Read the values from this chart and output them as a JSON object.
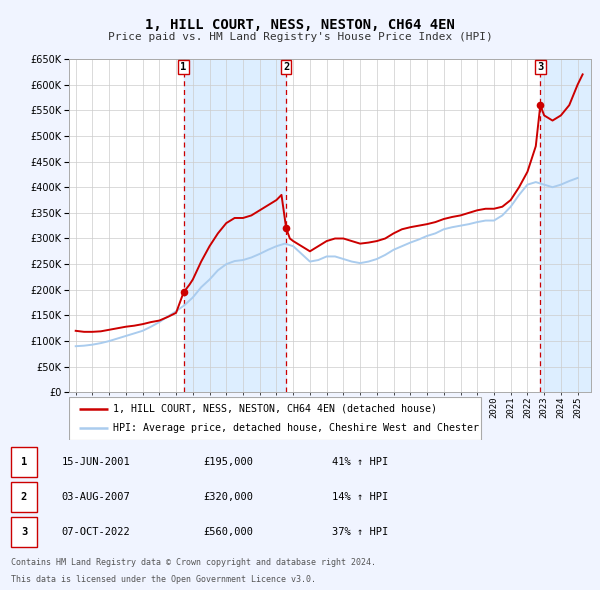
{
  "title": "1, HILL COURT, NESS, NESTON, CH64 4EN",
  "subtitle": "Price paid vs. HM Land Registry's House Price Index (HPI)",
  "legend_label_red": "1, HILL COURT, NESS, NESTON, CH64 4EN (detached house)",
  "legend_label_blue": "HPI: Average price, detached house, Cheshire West and Chester",
  "footnote1": "Contains HM Land Registry data © Crown copyright and database right 2024.",
  "footnote2": "This data is licensed under the Open Government Licence v3.0.",
  "transactions": [
    {
      "num": 1,
      "date": "15-JUN-2001",
      "price": 195000,
      "hpi_pct": "41% ↑ HPI",
      "x": 2001.45
    },
    {
      "num": 2,
      "date": "03-AUG-2007",
      "price": 320000,
      "hpi_pct": "14% ↑ HPI",
      "x": 2007.58
    },
    {
      "num": 3,
      "date": "07-OCT-2022",
      "price": 560000,
      "hpi_pct": "37% ↑ HPI",
      "x": 2022.77
    }
  ],
  "ylim": [
    0,
    650000
  ],
  "yticks": [
    0,
    50000,
    100000,
    150000,
    200000,
    250000,
    300000,
    350000,
    400000,
    450000,
    500000,
    550000,
    600000,
    650000
  ],
  "xlim_start": 1994.6,
  "xlim_end": 2025.8,
  "bg_color": "#f0f4ff",
  "plot_bg_color": "#ffffff",
  "grid_color": "#cccccc",
  "red_color": "#cc0000",
  "blue_color": "#aaccee",
  "vline_color": "#cc0000",
  "highlight_bg": "#ddeeff",
  "marker_color": "#cc0000",
  "red_line": [
    [
      1995.0,
      120000
    ],
    [
      1995.5,
      118000
    ],
    [
      1996.0,
      118000
    ],
    [
      1996.5,
      119000
    ],
    [
      1997.0,
      122000
    ],
    [
      1997.5,
      125000
    ],
    [
      1998.0,
      128000
    ],
    [
      1998.5,
      130000
    ],
    [
      1999.0,
      133000
    ],
    [
      1999.5,
      137000
    ],
    [
      2000.0,
      140000
    ],
    [
      2000.5,
      147000
    ],
    [
      2001.0,
      155000
    ],
    [
      2001.45,
      195000
    ],
    [
      2001.8,
      210000
    ],
    [
      2002.0,
      220000
    ],
    [
      2002.5,
      255000
    ],
    [
      2003.0,
      285000
    ],
    [
      2003.5,
      310000
    ],
    [
      2004.0,
      330000
    ],
    [
      2004.5,
      340000
    ],
    [
      2005.0,
      340000
    ],
    [
      2005.5,
      345000
    ],
    [
      2006.0,
      355000
    ],
    [
      2006.5,
      365000
    ],
    [
      2007.0,
      375000
    ],
    [
      2007.3,
      385000
    ],
    [
      2007.58,
      320000
    ],
    [
      2007.8,
      300000
    ],
    [
      2008.0,
      295000
    ],
    [
      2008.5,
      285000
    ],
    [
      2009.0,
      275000
    ],
    [
      2009.5,
      285000
    ],
    [
      2010.0,
      295000
    ],
    [
      2010.5,
      300000
    ],
    [
      2011.0,
      300000
    ],
    [
      2011.5,
      295000
    ],
    [
      2012.0,
      290000
    ],
    [
      2012.5,
      292000
    ],
    [
      2013.0,
      295000
    ],
    [
      2013.5,
      300000
    ],
    [
      2014.0,
      310000
    ],
    [
      2014.5,
      318000
    ],
    [
      2015.0,
      322000
    ],
    [
      2015.5,
      325000
    ],
    [
      2016.0,
      328000
    ],
    [
      2016.5,
      332000
    ],
    [
      2017.0,
      338000
    ],
    [
      2017.5,
      342000
    ],
    [
      2018.0,
      345000
    ],
    [
      2018.5,
      350000
    ],
    [
      2019.0,
      355000
    ],
    [
      2019.5,
      358000
    ],
    [
      2020.0,
      358000
    ],
    [
      2020.5,
      362000
    ],
    [
      2021.0,
      375000
    ],
    [
      2021.5,
      400000
    ],
    [
      2022.0,
      430000
    ],
    [
      2022.5,
      480000
    ],
    [
      2022.77,
      560000
    ],
    [
      2023.0,
      540000
    ],
    [
      2023.5,
      530000
    ],
    [
      2024.0,
      540000
    ],
    [
      2024.5,
      560000
    ],
    [
      2025.0,
      600000
    ],
    [
      2025.3,
      620000
    ]
  ],
  "blue_line": [
    [
      1995.0,
      90000
    ],
    [
      1995.5,
      91000
    ],
    [
      1996.0,
      93000
    ],
    [
      1996.5,
      96000
    ],
    [
      1997.0,
      100000
    ],
    [
      1997.5,
      105000
    ],
    [
      1998.0,
      110000
    ],
    [
      1998.5,
      115000
    ],
    [
      1999.0,
      120000
    ],
    [
      1999.5,
      128000
    ],
    [
      2000.0,
      137000
    ],
    [
      2000.5,
      148000
    ],
    [
      2001.0,
      158000
    ],
    [
      2001.5,
      170000
    ],
    [
      2002.0,
      185000
    ],
    [
      2002.5,
      205000
    ],
    [
      2003.0,
      220000
    ],
    [
      2003.5,
      238000
    ],
    [
      2004.0,
      250000
    ],
    [
      2004.5,
      256000
    ],
    [
      2005.0,
      258000
    ],
    [
      2005.5,
      263000
    ],
    [
      2006.0,
      270000
    ],
    [
      2006.5,
      278000
    ],
    [
      2007.0,
      285000
    ],
    [
      2007.5,
      290000
    ],
    [
      2008.0,
      285000
    ],
    [
      2008.5,
      270000
    ],
    [
      2009.0,
      255000
    ],
    [
      2009.5,
      258000
    ],
    [
      2010.0,
      265000
    ],
    [
      2010.5,
      265000
    ],
    [
      2011.0,
      260000
    ],
    [
      2011.5,
      255000
    ],
    [
      2012.0,
      252000
    ],
    [
      2012.5,
      255000
    ],
    [
      2013.0,
      260000
    ],
    [
      2013.5,
      268000
    ],
    [
      2014.0,
      278000
    ],
    [
      2014.5,
      285000
    ],
    [
      2015.0,
      292000
    ],
    [
      2015.5,
      298000
    ],
    [
      2016.0,
      305000
    ],
    [
      2016.5,
      310000
    ],
    [
      2017.0,
      318000
    ],
    [
      2017.5,
      322000
    ],
    [
      2018.0,
      325000
    ],
    [
      2018.5,
      328000
    ],
    [
      2019.0,
      332000
    ],
    [
      2019.5,
      335000
    ],
    [
      2020.0,
      335000
    ],
    [
      2020.5,
      345000
    ],
    [
      2021.0,
      362000
    ],
    [
      2021.5,
      385000
    ],
    [
      2022.0,
      405000
    ],
    [
      2022.5,
      410000
    ],
    [
      2023.0,
      405000
    ],
    [
      2023.5,
      400000
    ],
    [
      2024.0,
      405000
    ],
    [
      2024.5,
      412000
    ],
    [
      2025.0,
      418000
    ]
  ]
}
